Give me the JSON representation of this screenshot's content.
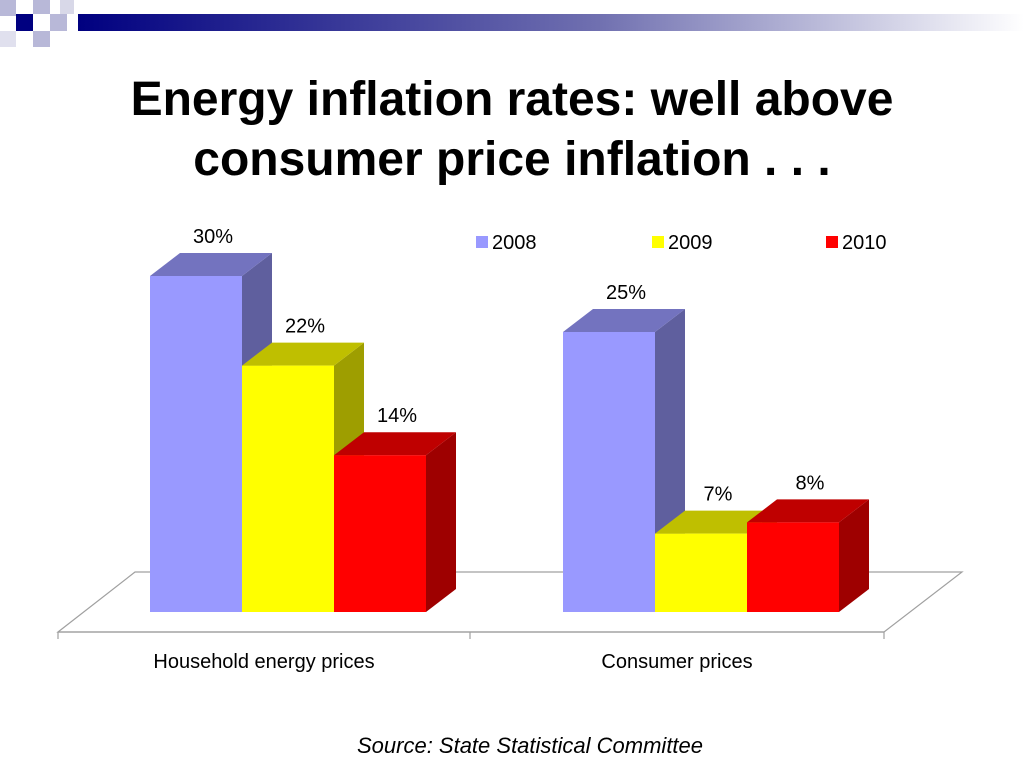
{
  "slide": {
    "title_line1": "Energy inflation rates: well above",
    "title_line2": "consumer price inflation . . .",
    "source": "Source: State Statistical Committee"
  },
  "chart_data": {
    "type": "bar",
    "style": "3d-clustered",
    "categories": [
      "Household energy prices",
      "Consumer prices"
    ],
    "series": [
      {
        "name": "2008",
        "values": [
          30,
          25
        ],
        "labels": [
          "30%",
          "25%"
        ],
        "color": "#9999ff"
      },
      {
        "name": "2009",
        "values": [
          22,
          7
        ],
        "labels": [
          "22%",
          "7%"
        ],
        "color": "#ffff00"
      },
      {
        "name": "2010",
        "values": [
          14,
          8
        ],
        "labels": [
          "14%",
          "8%"
        ],
        "color": "#ff0000"
      }
    ],
    "unit": "%",
    "legend_position": "top-right",
    "grid": false
  },
  "theme": {
    "decoration_navy": "#000080",
    "decoration_light": "#b8b8d8",
    "floor_stroke": "#a0a0a0"
  }
}
